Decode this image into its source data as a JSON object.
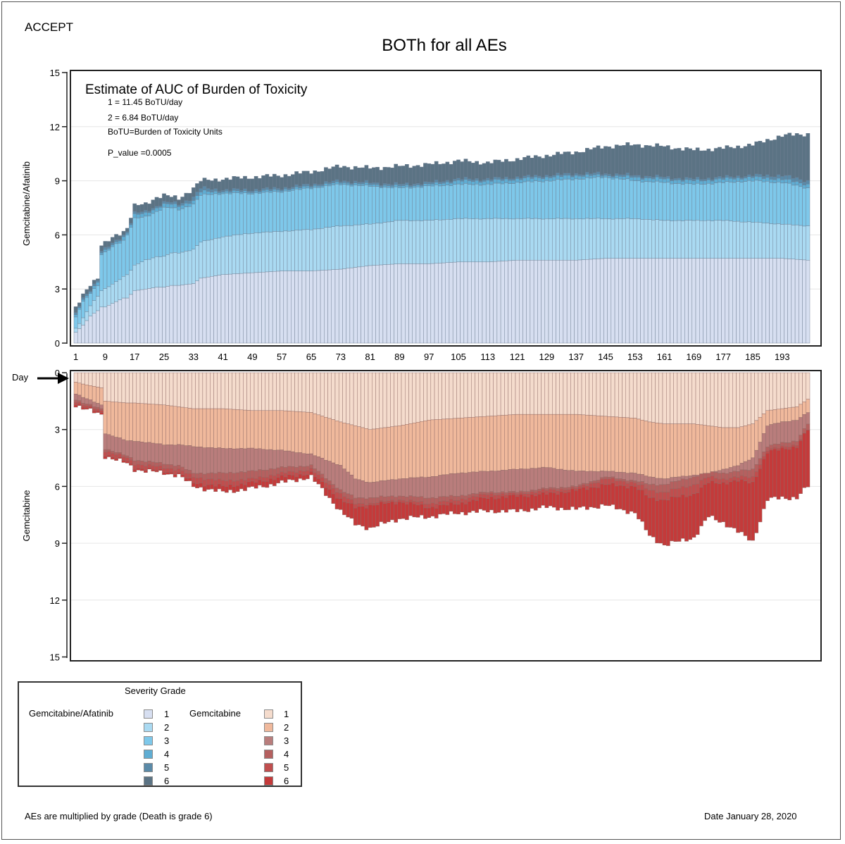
{
  "page": {
    "study": "ACCEPT",
    "title": "BOTh for all AEs",
    "footnote": "AEs are multiplied by grade (Death is grade 6)",
    "date": "Date January 28, 2020"
  },
  "inset": {
    "title": "Estimate of AUC of Burden of Toxicity",
    "line1": "1 = 11.45 BoTU/day",
    "line2": "2 = 6.84 BoTU/day",
    "line3": "BoTU=Burden of Toxicity Units",
    "pvalue": "P_value =0.0005"
  },
  "axes": {
    "day_label": "Day",
    "top_ylabel": "Gemcitabine/Afatinib",
    "bottom_ylabel": "Gemcitabine",
    "top_yticks": [
      "0",
      "3",
      "6",
      "9",
      "12",
      "15"
    ],
    "bottom_yticks": [
      "0",
      "3",
      "6",
      "9",
      "12",
      "15"
    ],
    "xticks": [
      "1",
      "9",
      "17",
      "25",
      "33",
      "41",
      "49",
      "57",
      "65",
      "73",
      "81",
      "89",
      "97",
      "105",
      "113",
      "121",
      "129",
      "137",
      "145",
      "153",
      "161",
      "169",
      "177",
      "185",
      "193"
    ]
  },
  "legend": {
    "title": "Severity Grade",
    "left_name": "Gemcitabine/Afatinib",
    "right_name": "Gemcitabine",
    "grades": [
      "1",
      "2",
      "3",
      "4",
      "5",
      "6"
    ],
    "left_colors": [
      "#d7dff1",
      "#aadaf2",
      "#7ec8ea",
      "#5fadd3",
      "#5a8aa8",
      "#5b7384"
    ],
    "right_colors": [
      "#f5dccd",
      "#f0b99c",
      "#b97d7c",
      "#b5605f",
      "#c04e4e",
      "#c43a3a"
    ]
  },
  "chart_data": [
    {
      "type": "bar",
      "stacked": true,
      "name": "Gemcitabine/Afatinib",
      "x_range": [
        1,
        200
      ],
      "xticks": [
        1,
        9,
        17,
        25,
        33,
        41,
        49,
        57,
        65,
        73,
        81,
        89,
        97,
        105,
        113,
        121,
        129,
        137,
        145,
        153,
        161,
        169,
        177,
        185,
        193
      ],
      "ylim": [
        0,
        15
      ],
      "ylabel": "Gemcitabine/Afatinib",
      "day_knots": [
        1,
        2,
        3,
        5,
        7,
        8,
        9,
        12,
        14,
        15,
        17,
        20,
        23,
        25,
        27,
        29,
        33,
        35,
        41,
        49,
        57,
        65,
        73,
        81,
        89,
        97,
        105,
        113,
        121,
        129,
        137,
        145,
        153,
        161,
        169,
        177,
        185,
        193,
        200
      ],
      "series": [
        {
          "grade": "1",
          "cumulative": [
            0.6,
            0.8,
            1.0,
            1.5,
            1.8,
            2.0,
            2.0,
            2.3,
            2.5,
            2.5,
            2.9,
            3.0,
            3.1,
            3.1,
            3.2,
            3.2,
            3.3,
            3.6,
            3.8,
            3.9,
            4.0,
            4.0,
            4.1,
            4.3,
            4.4,
            4.4,
            4.5,
            4.5,
            4.6,
            4.6,
            4.6,
            4.7,
            4.7,
            4.7,
            4.7,
            4.7,
            4.7,
            4.7,
            4.6
          ]
        },
        {
          "grade": "2",
          "cumulative": [
            0.8,
            1.1,
            1.4,
            2.1,
            2.6,
            2.9,
            3.0,
            3.4,
            3.7,
            3.8,
            4.3,
            4.6,
            4.8,
            4.8,
            5.0,
            5.0,
            5.2,
            5.6,
            5.9,
            6.1,
            6.2,
            6.3,
            6.5,
            6.6,
            6.8,
            6.8,
            6.9,
            6.9,
            6.9,
            6.9,
            6.9,
            6.9,
            6.9,
            6.8,
            6.8,
            6.8,
            6.7,
            6.6,
            6.5
          ]
        },
        {
          "grade": "3",
          "cumulative": [
            1.4,
            1.9,
            2.3,
            2.8,
            3.2,
            4.9,
            5.0,
            5.5,
            5.7,
            6.0,
            6.9,
            7.0,
            7.3,
            7.5,
            7.5,
            7.4,
            7.7,
            8.2,
            8.3,
            8.3,
            8.4,
            8.6,
            8.8,
            8.7,
            8.6,
            8.7,
            8.8,
            8.8,
            8.9,
            9.0,
            9.1,
            9.2,
            9.0,
            8.9,
            8.8,
            8.9,
            9.0,
            8.9,
            8.6
          ]
        },
        {
          "grade": "4",
          "cumulative": [
            1.5,
            2.0,
            2.4,
            2.9,
            3.4,
            5.0,
            5.1,
            5.6,
            5.9,
            6.1,
            7.1,
            7.2,
            7.5,
            7.7,
            7.7,
            7.6,
            7.9,
            8.4,
            8.4,
            8.4,
            8.5,
            8.7,
            8.9,
            8.8,
            8.7,
            8.8,
            9.0,
            9.0,
            9.1,
            9.2,
            9.3,
            9.3,
            9.2,
            9.1,
            9.0,
            9.1,
            9.2,
            9.1,
            8.8
          ]
        },
        {
          "grade": "5",
          "cumulative": [
            1.6,
            2.1,
            2.5,
            3.0,
            3.5,
            5.1,
            5.2,
            5.7,
            6.0,
            6.2,
            7.2,
            7.3,
            7.6,
            7.8,
            7.8,
            7.7,
            8.1,
            8.6,
            8.5,
            8.5,
            8.6,
            8.8,
            9.0,
            8.9,
            8.8,
            8.9,
            9.1,
            9.1,
            9.2,
            9.3,
            9.4,
            9.4,
            9.3,
            9.2,
            9.1,
            9.2,
            9.3,
            9.3,
            9.0
          ]
        },
        {
          "grade": "6",
          "cumulative": [
            1.9,
            2.3,
            2.7,
            3.3,
            3.6,
            5.4,
            5.5,
            6.0,
            6.2,
            6.4,
            7.6,
            7.7,
            8.1,
            8.2,
            8.1,
            8.0,
            8.6,
            9.0,
            9.1,
            9.2,
            9.3,
            9.5,
            9.8,
            9.7,
            9.8,
            9.9,
            10.1,
            10.0,
            10.2,
            10.4,
            10.6,
            10.9,
            11.0,
            10.9,
            10.7,
            10.8,
            11.0,
            11.5,
            11.6
          ]
        }
      ]
    },
    {
      "type": "bar",
      "stacked": true,
      "inverted": true,
      "name": "Gemcitabine",
      "x_range": [
        1,
        200
      ],
      "ylim": [
        0,
        15
      ],
      "ylabel": "Gemcitabine",
      "day_knots": [
        1,
        3,
        8,
        9,
        15,
        17,
        25,
        29,
        33,
        41,
        49,
        57,
        65,
        73,
        77,
        81,
        89,
        97,
        105,
        113,
        121,
        129,
        137,
        145,
        153,
        157,
        161,
        169,
        173,
        177,
        181,
        185,
        189,
        193,
        197,
        200
      ],
      "series": [
        {
          "grade": "1",
          "cumulative": [
            0.5,
            0.6,
            0.8,
            1.5,
            1.6,
            1.6,
            1.7,
            1.8,
            1.9,
            1.9,
            2.0,
            2.0,
            2.1,
            2.6,
            2.8,
            3.0,
            2.8,
            2.5,
            2.4,
            2.3,
            2.2,
            2.2,
            2.2,
            2.3,
            2.4,
            2.6,
            2.7,
            2.7,
            2.8,
            2.9,
            2.9,
            2.7,
            2.0,
            1.9,
            1.8,
            1.4
          ]
        },
        {
          "grade": "2",
          "cumulative": [
            1.1,
            1.3,
            1.7,
            3.2,
            3.6,
            3.6,
            3.8,
            3.8,
            3.9,
            4.0,
            4.0,
            4.1,
            4.3,
            4.9,
            5.6,
            5.8,
            5.6,
            5.5,
            5.3,
            5.2,
            5.1,
            5.0,
            5.2,
            5.2,
            5.3,
            5.5,
            5.6,
            5.4,
            5.3,
            5.1,
            4.9,
            4.5,
            2.8,
            2.6,
            2.5,
            2.1
          ]
        },
        {
          "grade": "3",
          "cumulative": [
            1.4,
            1.6,
            1.9,
            4.0,
            4.4,
            4.6,
            4.8,
            4.9,
            5.3,
            5.3,
            5.2,
            5.0,
            4.9,
            6.2,
            6.6,
            6.6,
            6.5,
            6.6,
            6.5,
            6.3,
            6.3,
            6.1,
            6.0,
            5.5,
            5.7,
            5.9,
            5.9,
            5.5,
            5.2,
            5.3,
            5.2,
            5.1,
            3.9,
            3.7,
            3.6,
            2.7
          ]
        },
        {
          "grade": "4",
          "cumulative": [
            1.5,
            1.7,
            2.0,
            4.1,
            4.5,
            4.8,
            5.0,
            5.1,
            5.5,
            5.7,
            5.6,
            5.3,
            5.1,
            6.4,
            6.9,
            6.9,
            6.7,
            6.9,
            6.7,
            6.4,
            6.4,
            6.2,
            6.1,
            5.6,
            5.8,
            6.2,
            6.3,
            5.9,
            5.5,
            5.6,
            5.5,
            5.5,
            4.1,
            3.9,
            3.8,
            3.0
          ]
        },
        {
          "grade": "5",
          "cumulative": [
            1.6,
            1.8,
            2.1,
            4.3,
            4.7,
            5.0,
            5.2,
            5.3,
            5.8,
            6.0,
            5.8,
            5.5,
            5.3,
            6.7,
            7.1,
            7.0,
            6.8,
            7.1,
            6.9,
            6.6,
            6.5,
            6.4,
            6.2,
            5.9,
            6.0,
            6.6,
            6.7,
            6.4,
            5.8,
            5.8,
            5.7,
            5.8,
            4.2,
            4.0,
            3.9,
            3.0
          ]
        },
        {
          "grade": "6",
          "cumulative": [
            1.7,
            1.9,
            2.2,
            4.4,
            4.8,
            5.1,
            5.3,
            5.4,
            6.0,
            6.3,
            6.1,
            5.8,
            5.5,
            7.3,
            8.0,
            8.2,
            7.7,
            7.6,
            7.4,
            7.3,
            7.3,
            7.1,
            7.2,
            7.0,
            7.4,
            8.6,
            9.1,
            8.7,
            7.6,
            7.9,
            8.4,
            8.9,
            6.7,
            6.6,
            6.6,
            6.0
          ]
        }
      ]
    }
  ]
}
